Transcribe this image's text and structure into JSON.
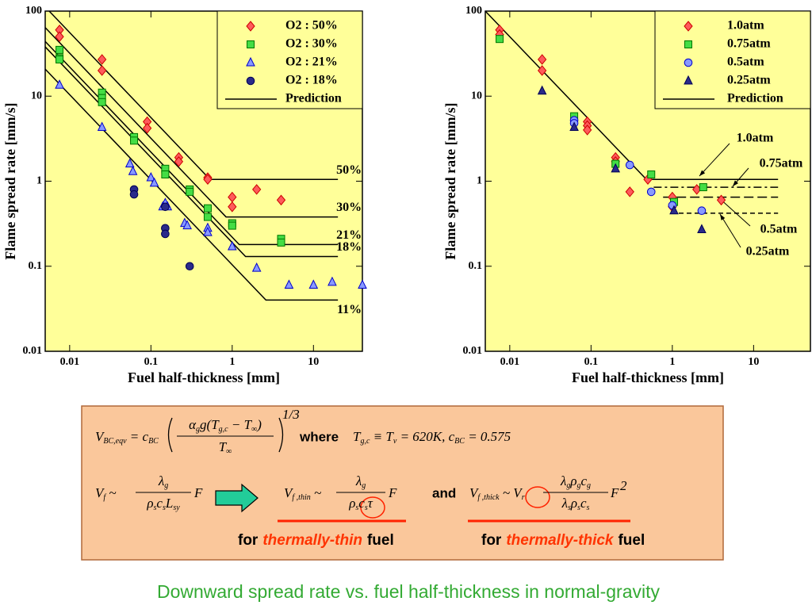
{
  "chart_data": [
    {
      "type": "scatter",
      "xlabel": "Fuel half-thickness [mm]",
      "ylabel": "Flame spread rate [mm/s]",
      "xlim": [
        0.005,
        40
      ],
      "ylim": [
        0.01,
        100
      ],
      "xticks": [
        0.01,
        0.1,
        1,
        10
      ],
      "yticks": [
        0.01,
        0.1,
        1,
        10,
        100
      ],
      "log_x": true,
      "log_y": true,
      "legend": "upper right",
      "background": "#ffff99",
      "series": [
        {
          "name": "O2 : 50%",
          "marker": "diamond",
          "color": "#ff5a5a",
          "edgecolor": "#cc0000",
          "x": [
            0.0075,
            0.0075,
            0.025,
            0.025,
            0.09,
            0.09,
            0.22,
            0.22,
            0.5,
            0.5,
            1,
            1,
            2,
            4
          ],
          "y": [
            60,
            50,
            27,
            20,
            5,
            4.2,
            1.9,
            1.7,
            1.1,
            1.05,
            0.65,
            0.5,
            0.8,
            0.6
          ]
        },
        {
          "name": "O2 : 30%",
          "marker": "square",
          "color": "#44dd44",
          "edgecolor": "#007700",
          "x": [
            0.0075,
            0.0075,
            0.0075,
            0.025,
            0.025,
            0.025,
            0.062,
            0.062,
            0.15,
            0.15,
            0.3,
            0.3,
            0.5,
            0.5,
            1,
            1,
            4,
            4
          ],
          "y": [
            35,
            28,
            27,
            11,
            9.5,
            8.5,
            3.3,
            3,
            1.4,
            1.2,
            0.8,
            0.75,
            0.48,
            0.38,
            0.32,
            0.3,
            0.21,
            0.19
          ]
        },
        {
          "name": "O2 : 21%",
          "marker": "triangle",
          "color": "#8899ff",
          "edgecolor": "#0000cc",
          "x": [
            0.0075,
            0.025,
            0.055,
            0.06,
            0.1,
            0.11,
            0.14,
            0.15,
            0.16,
            0.26,
            0.28,
            0.5,
            0.5,
            1,
            2,
            5,
            10,
            17,
            40
          ],
          "y": [
            13.5,
            4.3,
            1.6,
            1.3,
            1.1,
            0.95,
            0.5,
            0.55,
            0.5,
            0.32,
            0.3,
            0.28,
            0.25,
            0.17,
            0.095,
            0.06,
            0.06,
            0.065,
            0.06
          ]
        },
        {
          "name": "O2 : 18%",
          "marker": "circle",
          "color": "#2a2a8a",
          "edgecolor": "#000055",
          "x": [
            0.062,
            0.062,
            0.15,
            0.15,
            0.15,
            0.3
          ],
          "y": [
            0.8,
            0.7,
            0.5,
            0.28,
            0.24,
            0.1
          ]
        }
      ],
      "prediction": {
        "name": "Prediction",
        "color": "#000000",
        "lines": [
          {
            "label": "50%",
            "dash": "solid",
            "x": [
              0.0056,
              0.533,
              20
            ],
            "y": [
              100,
              1.05,
              1.05
            ]
          },
          {
            "label": "30%",
            "dash": "solid",
            "x": [
              0.005,
              0.84,
              20
            ],
            "y": [
              64,
              0.38,
              0.38
            ]
          },
          {
            "label": "21%",
            "dash": "solid",
            "x": [
              0.005,
              1.22,
              20
            ],
            "y": [
              44,
              0.18,
              0.18
            ]
          },
          {
            "label": "18%",
            "dash": "solid",
            "x": [
              0.005,
              1.46,
              20
            ],
            "y": [
              38,
              0.13,
              0.13
            ]
          },
          {
            "label": "11%",
            "dash": "solid",
            "x": [
              0.005,
              2.6,
              20
            ],
            "y": [
              20.8,
              0.04,
              0.04
            ]
          }
        ]
      }
    },
    {
      "type": "scatter",
      "xlabel": "Fuel half-thickness [mm]",
      "ylabel": "Flame spread rate [mm/s]",
      "xlim": [
        0.005,
        50
      ],
      "ylim": [
        0.01,
        100
      ],
      "xticks": [
        0.01,
        0.1,
        1,
        10
      ],
      "yticks": [
        0.01,
        0.1,
        1,
        10,
        100
      ],
      "log_x": true,
      "log_y": true,
      "legend": "upper right",
      "background": "#ffff99",
      "series": [
        {
          "name": "1.0atm",
          "marker": "diamond",
          "color": "#ff5a5a",
          "edgecolor": "#cc0000",
          "x": [
            0.0075,
            0.0075,
            0.025,
            0.025,
            0.09,
            0.09,
            0.09,
            0.2,
            0.2,
            0.3,
            0.5,
            1,
            1,
            2,
            4
          ],
          "y": [
            60,
            53,
            27,
            20,
            5,
            4.5,
            4,
            1.9,
            1.7,
            0.75,
            1.05,
            0.65,
            0.5,
            0.8,
            0.6
          ]
        },
        {
          "name": "0.75atm",
          "marker": "square",
          "color": "#44dd44",
          "edgecolor": "#007700",
          "x": [
            0.0075,
            0.062,
            0.2,
            0.55,
            1.05,
            2.4
          ],
          "y": [
            47,
            5.8,
            1.6,
            1.2,
            0.57,
            0.85
          ]
        },
        {
          "name": "0.5atm",
          "marker": "circle",
          "color": "#8899ff",
          "edgecolor": "#0000cc",
          "x": [
            0.062,
            0.062,
            0.3,
            0.55,
            1,
            2.3
          ],
          "y": [
            5.2,
            4.8,
            1.55,
            0.75,
            0.52,
            0.45
          ]
        },
        {
          "name": "0.25atm",
          "marker": "triangle",
          "color": "#2a2a8a",
          "edgecolor": "#000055",
          "x": [
            0.025,
            0.062,
            0.2,
            1.05,
            2.3
          ],
          "y": [
            11.5,
            4.3,
            1.4,
            0.45,
            0.27
          ]
        }
      ],
      "prediction": {
        "name": "Prediction",
        "color": "#000000",
        "lines": [
          {
            "label": "1.0atm",
            "dash": "solid",
            "x": [
              0.005,
              0.48,
              20
            ],
            "y": [
              100,
              1.05,
              1.05
            ]
          },
          {
            "label": "0.75atm",
            "dash": "dashdot",
            "x": [
              0.59,
              20
            ],
            "y": [
              0.85,
              0.85
            ]
          },
          {
            "label": "0.5atm",
            "dash": "longdash",
            "x": [
              0.77,
              20
            ],
            "y": [
              0.65,
              0.65
            ]
          },
          {
            "label": "0.25atm",
            "dash": "dash",
            "x": [
              1.2,
              20
            ],
            "y": [
              0.42,
              0.42
            ]
          }
        ]
      }
    }
  ],
  "formulas": {
    "bc": {
      "lhs": [
        [
          "V",
          "BC,eqv"
        ],
        [
          " = c",
          "BC"
        ]
      ],
      "num": [
        [
          "α",
          "g"
        ],
        [
          "g(T",
          "g,c"
        ],
        [
          " − T",
          "∞"
        ],
        [
          ")"
        ]
      ],
      "den": [
        [
          "T",
          "∞"
        ]
      ],
      "exp": "1/3",
      "where": "where",
      "cond": [
        [
          "T",
          "g,c"
        ],
        [
          " ≡ T",
          "v"
        ],
        [
          " = 620K,  c",
          "BC"
        ],
        [
          " = 0.575"
        ]
      ]
    },
    "general": {
      "lhs": [
        [
          "V",
          "f"
        ],
        [
          " ~"
        ]
      ],
      "num": [
        [
          "λ",
          "g"
        ]
      ],
      "den": [
        [
          "ρ",
          "s"
        ],
        [
          "c",
          "s"
        ],
        [
          "L",
          "sy"
        ]
      ],
      "tail": [
        [
          "F"
        ]
      ]
    },
    "thin": {
      "lhs": [
        [
          "V",
          "f ,thin"
        ],
        [
          " ~"
        ]
      ],
      "num": [
        [
          "λ",
          "g"
        ]
      ],
      "den": [
        [
          "ρ",
          "s"
        ],
        [
          "c",
          "s"
        ],
        [
          "τ"
        ]
      ],
      "tail": [
        [
          "F"
        ]
      ]
    },
    "and": "and",
    "thick": {
      "lhs": [
        [
          "V",
          "f ,thick"
        ],
        [
          " ~ V",
          "r"
        ]
      ],
      "num": [
        [
          "λ",
          "g"
        ],
        [
          "ρ",
          "g"
        ],
        [
          "c",
          "g"
        ]
      ],
      "den": [
        [
          "λ",
          "s"
        ],
        [
          "ρ",
          "s"
        ],
        [
          "c",
          "s"
        ]
      ],
      "tail": [
        [
          "F"
        ]
      ],
      "exp": "2"
    },
    "footer": [
      {
        "for": "for",
        "kind": "thermally-thin",
        "fuel": "fuel"
      },
      {
        "for": "for",
        "kind": "thermally-thick",
        "fuel": "fuel"
      }
    ]
  },
  "caption": "Downward spread rate vs. fuel half-thickness in normal-gravity"
}
